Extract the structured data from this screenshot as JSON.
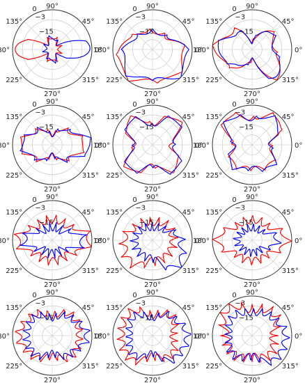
{
  "chart_data": [
    {
      "type": "polar",
      "row": 1,
      "col": 1,
      "rlim": [
        -30,
        0
      ],
      "rticks": [
        "0",
        "−3",
        "−15"
      ],
      "theta_ticks": [
        "0°",
        "45°",
        "90°",
        "135°",
        "180°",
        "225°",
        "270°",
        "315°"
      ],
      "grid": true,
      "colors": {
        "series_a": "#ff0000",
        "series_b": "#0000ff"
      },
      "series": [
        {
          "color": "#ff0000",
          "theta_deg": [
            0,
            45,
            90,
            135,
            180,
            225,
            270,
            315
          ],
          "r_dB": [
            -24,
            -24,
            -20,
            -24,
            0,
            -24,
            -20,
            -24
          ]
        },
        {
          "color": "#0000ff",
          "theta_deg": [
            0,
            45,
            90,
            135,
            180,
            225,
            270,
            315
          ],
          "r_dB": [
            0,
            -24,
            -20,
            -24,
            -24,
            -24,
            -20,
            -24
          ]
        }
      ]
    },
    {
      "type": "polar",
      "row": 1,
      "col": 2,
      "rlim": [
        -30,
        0
      ],
      "rticks": [
        "0",
        "−3",
        "−15"
      ],
      "theta_ticks": [
        "0°",
        "45°",
        "90°",
        "135°",
        "180°",
        "225°",
        "270°",
        "315°"
      ],
      "grid": true,
      "colors": {
        "series_a": "#ff0000",
        "series_b": "#0000ff"
      },
      "series": [
        {
          "color": "#ff0000",
          "theta_deg": [
            0,
            45,
            90,
            135,
            180,
            225,
            270,
            315
          ],
          "r_dB": [
            -6,
            -16,
            -16,
            -13,
            -4,
            -1,
            -6,
            -3
          ]
        },
        {
          "color": "#0000ff",
          "theta_deg": [
            0,
            45,
            90,
            135,
            180,
            225,
            270,
            315
          ],
          "r_dB": [
            -4,
            -16,
            -16,
            -15,
            -8,
            -3,
            -8,
            -1
          ]
        }
      ]
    },
    {
      "type": "polar",
      "row": 1,
      "col": 3,
      "rlim": [
        -30,
        0
      ],
      "rticks": [
        "0",
        "−3",
        "−15"
      ],
      "theta_ticks": [
        "0°",
        "45°",
        "90°",
        "135°",
        "180°",
        "225°",
        "270°",
        "315°"
      ],
      "grid": true,
      "colors": {
        "series_a": "#ff0000",
        "series_b": "#0000ff"
      },
      "series": [
        {
          "color": "#ff0000",
          "theta_deg": [
            0,
            45,
            90,
            135,
            180,
            225,
            270,
            315
          ],
          "r_dB": [
            -13,
            -10,
            -24,
            -10,
            -1,
            -10,
            -22,
            -1
          ]
        },
        {
          "color": "#0000ff",
          "theta_deg": [
            0,
            45,
            90,
            135,
            180,
            225,
            270,
            315
          ],
          "r_dB": [
            -13,
            -10,
            -24,
            -12,
            -3,
            -12,
            -22,
            -1
          ]
        }
      ]
    },
    {
      "type": "polar",
      "row": 2,
      "col": 1,
      "rlim": [
        -30,
        0
      ],
      "rticks": [
        "0",
        "−3",
        "−15"
      ],
      "theta_ticks": [
        "0°",
        "45°",
        "90°",
        "135°",
        "180°",
        "225°",
        "270°",
        "315°"
      ],
      "grid": true,
      "colors": {
        "series_a": "#ff0000",
        "series_b": "#0000ff"
      },
      "series": [
        {
          "color": "#ff0000",
          "theta_deg": [
            0,
            45,
            90,
            135,
            180,
            225,
            270,
            315
          ],
          "r_dB": [
            -5,
            -14,
            -22,
            -14,
            -5,
            -14,
            -22,
            -14
          ]
        },
        {
          "color": "#0000ff",
          "theta_deg": [
            0,
            45,
            90,
            135,
            180,
            225,
            270,
            315
          ],
          "r_dB": [
            0,
            -14,
            -22,
            -14,
            -6,
            -14,
            -22,
            -14
          ]
        }
      ]
    },
    {
      "type": "polar",
      "row": 2,
      "col": 2,
      "rlim": [
        -30,
        0
      ],
      "rticks": [
        "0",
        "−3",
        "−15"
      ],
      "theta_ticks": [
        "0°",
        "45°",
        "90°",
        "135°",
        "180°",
        "225°",
        "270°",
        "315°"
      ],
      "grid": true,
      "colors": {
        "series_a": "#ff0000",
        "series_b": "#0000ff"
      },
      "series": [
        {
          "color": "#ff0000",
          "theta_deg": [
            0,
            45,
            90,
            135,
            180,
            225,
            270,
            315
          ],
          "r_dB": [
            -16,
            -2,
            -14,
            -3,
            -16,
            -3,
            -14,
            -4
          ]
        },
        {
          "color": "#0000ff",
          "theta_deg": [
            0,
            45,
            90,
            135,
            180,
            225,
            270,
            315
          ],
          "r_dB": [
            -14,
            -3,
            -15,
            -4,
            -16,
            -4,
            -14,
            -3
          ]
        }
      ]
    },
    {
      "type": "polar",
      "row": 2,
      "col": 3,
      "rlim": [
        -30,
        0
      ],
      "rticks": [
        "0",
        "−3",
        "−15"
      ],
      "theta_ticks": [
        "0°",
        "45°",
        "90°",
        "135°",
        "180°",
        "225°",
        "270°",
        "315°"
      ],
      "grid": true,
      "colors": {
        "series_a": "#ff0000",
        "series_b": "#0000ff"
      },
      "series": [
        {
          "color": "#ff0000",
          "theta_deg": [
            0,
            45,
            90,
            135,
            180,
            225,
            270,
            315
          ],
          "r_dB": [
            -16,
            -1,
            -10,
            -1,
            -16,
            -9,
            -12,
            -9
          ]
        },
        {
          "color": "#0000ff",
          "theta_deg": [
            0,
            45,
            90,
            135,
            180,
            225,
            270,
            315
          ],
          "r_dB": [
            -16,
            -3,
            -10,
            -3,
            -16,
            -7,
            -12,
            -7
          ]
        }
      ]
    },
    {
      "type": "polar",
      "row": 3,
      "col": 1,
      "rlim": [
        -30,
        0
      ],
      "rticks": [
        "0",
        "−3",
        "−15"
      ],
      "theta_ticks": [
        "0°",
        "45°",
        "90°",
        "135°",
        "180°",
        "225°",
        "270°",
        "315°"
      ],
      "grid": true,
      "colors": {
        "series_a": "#ff0000",
        "series_b": "#0000ff"
      },
      "series": [
        {
          "color": "#ff0000",
          "theta_deg": [
            0,
            45,
            90,
            135,
            180,
            225,
            270,
            315
          ],
          "r_dB": [
            -1,
            -14,
            -14,
            -14,
            -3,
            -14,
            -14,
            -14
          ]
        },
        {
          "color": "#0000ff",
          "theta_deg": [
            0,
            45,
            90,
            135,
            180,
            225,
            270,
            315
          ],
          "r_dB": [
            -6,
            -20,
            -20,
            -20,
            -8,
            -20,
            -20,
            -20
          ]
        }
      ]
    },
    {
      "type": "polar",
      "row": 3,
      "col": 2,
      "rlim": [
        -30,
        0
      ],
      "rticks": [
        "0",
        "−3",
        "−15"
      ],
      "theta_ticks": [
        "0°",
        "45°",
        "90°",
        "135°",
        "180°",
        "225°",
        "270°",
        "315°"
      ],
      "grid": true,
      "colors": {
        "series_a": "#ff0000",
        "series_b": "#0000ff"
      },
      "series": [
        {
          "color": "#ff0000",
          "theta_deg": [
            0,
            45,
            90,
            135,
            180,
            225,
            270,
            315
          ],
          "r_dB": [
            -14,
            -14,
            -16,
            -14,
            -8,
            -6,
            -14,
            -14
          ]
        },
        {
          "color": "#0000ff",
          "theta_deg": [
            0,
            45,
            90,
            135,
            180,
            225,
            270,
            315
          ],
          "r_dB": [
            -8,
            -18,
            -20,
            -18,
            -16,
            -16,
            -16,
            -2
          ]
        }
      ]
    },
    {
      "type": "polar",
      "row": 3,
      "col": 3,
      "rlim": [
        -30,
        0
      ],
      "rticks": [
        "0",
        "−3",
        "−15"
      ],
      "theta_ticks": [
        "0°",
        "45°",
        "90°",
        "135°",
        "180°",
        "225°",
        "270°",
        "315°"
      ],
      "grid": true,
      "colors": {
        "series_a": "#ff0000",
        "series_b": "#0000ff"
      },
      "series": [
        {
          "color": "#ff0000",
          "theta_deg": [
            0,
            45,
            90,
            135,
            180,
            225,
            270,
            315
          ],
          "r_dB": [
            -3,
            -14,
            -14,
            -14,
            -3,
            -14,
            -14,
            -14
          ]
        },
        {
          "color": "#0000ff",
          "theta_deg": [
            0,
            45,
            90,
            135,
            180,
            225,
            270,
            315
          ],
          "r_dB": [
            -10,
            -20,
            -20,
            -20,
            -18,
            -20,
            -20,
            -20
          ]
        }
      ]
    },
    {
      "type": "polar",
      "row": 4,
      "col": 1,
      "rlim": [
        -30,
        0
      ],
      "rticks": [
        "0",
        "−3",
        "−15"
      ],
      "theta_ticks": [
        "0°",
        "45°",
        "90°",
        "135°",
        "180°",
        "225°",
        "270°",
        "315°"
      ],
      "grid": true,
      "colors": {
        "series_a": "#ff0000",
        "series_b": "#0000ff"
      },
      "series": [
        {
          "color": "#ff0000",
          "theta_deg": [
            0,
            45,
            90,
            135,
            180,
            225,
            270,
            315
          ],
          "r_dB": [
            -9,
            -8,
            -14,
            -8,
            -4,
            -8,
            -14,
            -8
          ]
        },
        {
          "color": "#0000ff",
          "theta_deg": [
            0,
            45,
            90,
            135,
            180,
            225,
            270,
            315
          ],
          "r_dB": [
            -3,
            -10,
            -16,
            -10,
            -10,
            -10,
            -16,
            -10
          ]
        }
      ]
    },
    {
      "type": "polar",
      "row": 4,
      "col": 2,
      "rlim": [
        -30,
        0
      ],
      "rticks": [
        "0",
        "−3",
        "−15"
      ],
      "theta_ticks": [
        "0°",
        "45°",
        "90°",
        "135°",
        "180°",
        "225°",
        "270°",
        "315°"
      ],
      "grid": true,
      "colors": {
        "series_a": "#ff0000",
        "series_b": "#0000ff"
      },
      "series": [
        {
          "color": "#ff0000",
          "theta_deg": [
            0,
            45,
            90,
            135,
            180,
            225,
            270,
            315
          ],
          "r_dB": [
            -14,
            -9,
            -14,
            -5,
            -6,
            -5,
            -14,
            -9
          ]
        },
        {
          "color": "#0000ff",
          "theta_deg": [
            0,
            45,
            90,
            135,
            180,
            225,
            270,
            315
          ],
          "r_dB": [
            -3,
            -9,
            -16,
            -9,
            -12,
            -9,
            -16,
            -5
          ]
        }
      ]
    },
    {
      "type": "polar",
      "row": 4,
      "col": 3,
      "rlim": [
        -30,
        0
      ],
      "rticks": [
        "0",
        "−3",
        "−15"
      ],
      "theta_ticks": [
        "0°",
        "45°",
        "90°",
        "135°",
        "180°",
        "225°",
        "270°",
        "315°"
      ],
      "grid": true,
      "colors": {
        "series_a": "#ff0000",
        "series_b": "#0000ff"
      },
      "series": [
        {
          "color": "#ff0000",
          "theta_deg": [
            0,
            45,
            90,
            135,
            180,
            225,
            270,
            315
          ],
          "r_dB": [
            -14,
            -6,
            -10,
            -2,
            -10,
            -10,
            -14,
            -10
          ]
        },
        {
          "color": "#0000ff",
          "theta_deg": [
            0,
            45,
            90,
            135,
            180,
            225,
            270,
            315
          ],
          "r_dB": [
            -4,
            -9,
            -12,
            -9,
            -12,
            -9,
            -14,
            -4
          ]
        }
      ]
    }
  ]
}
